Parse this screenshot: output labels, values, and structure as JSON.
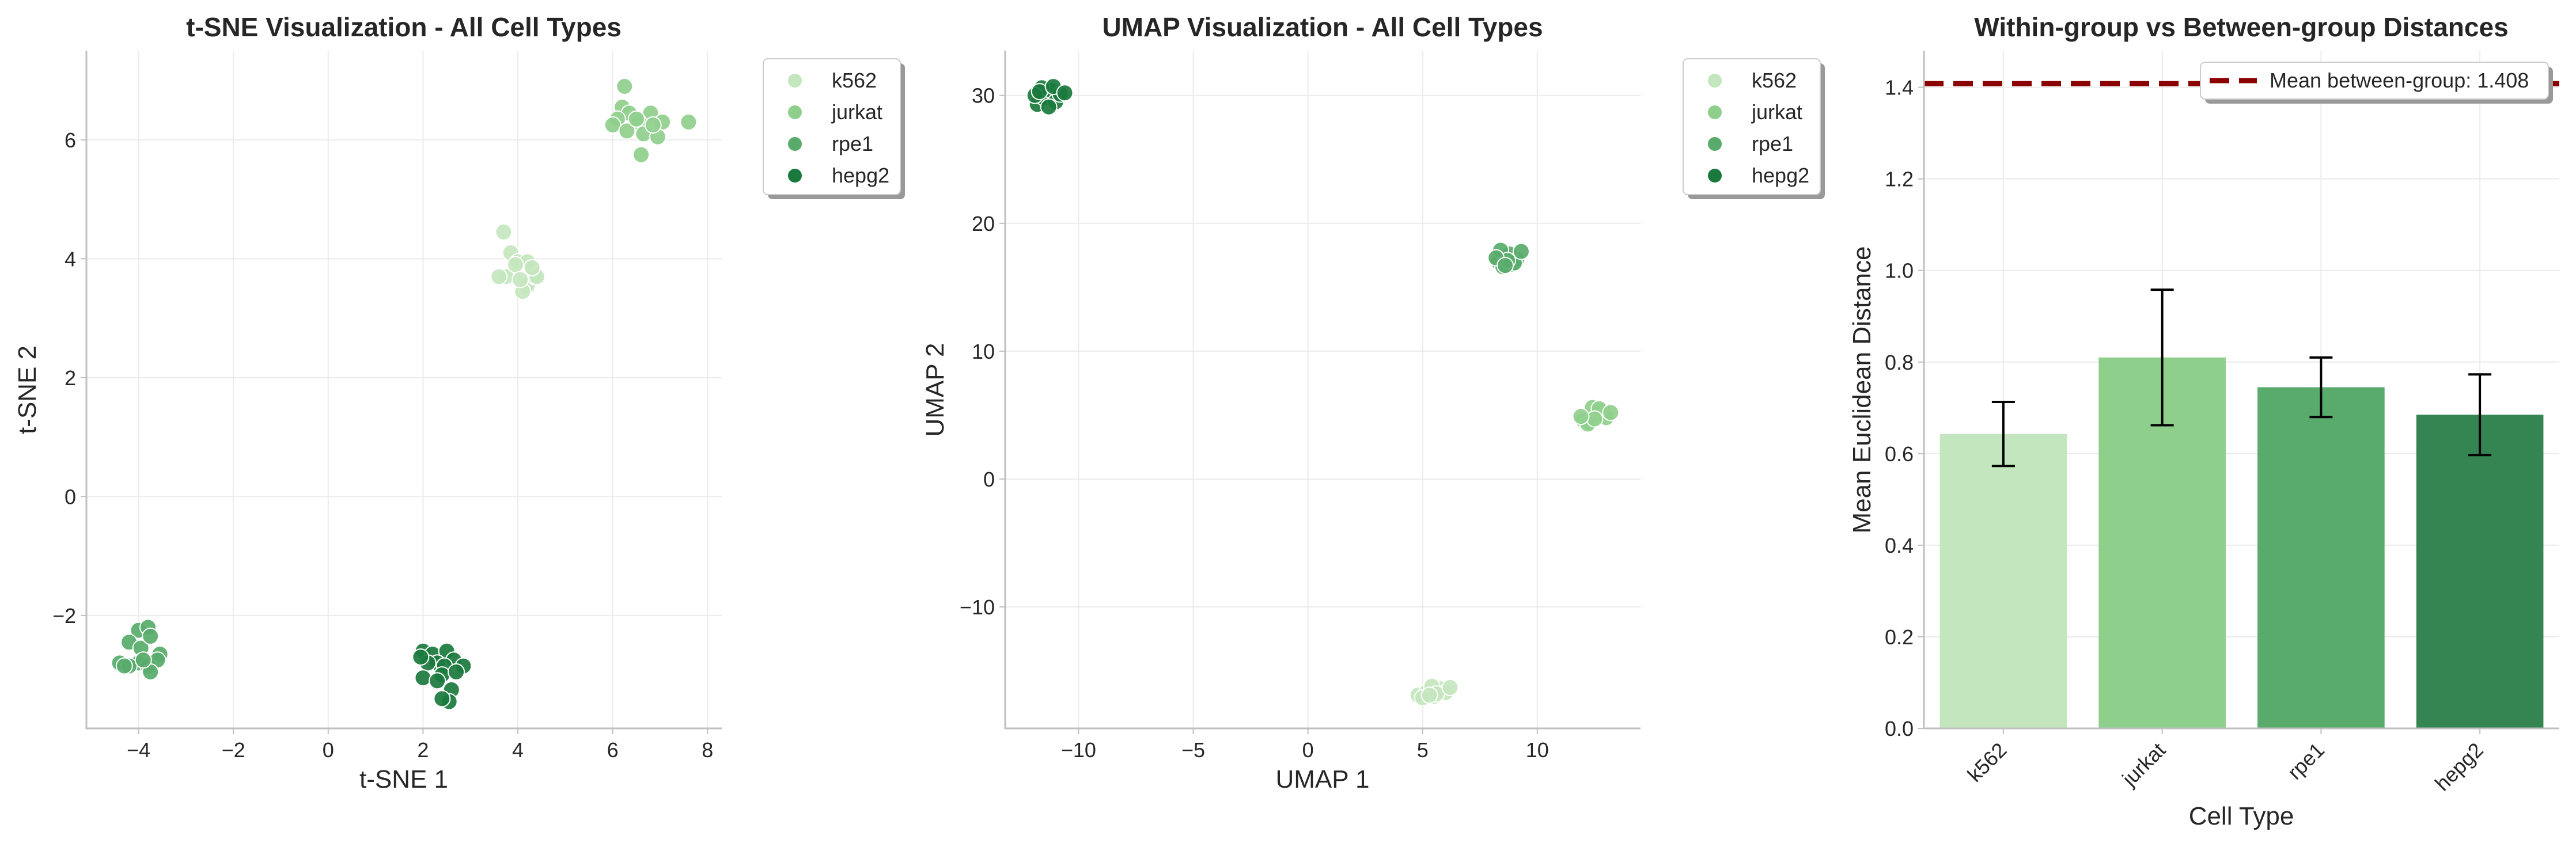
{
  "colors": {
    "k562": "#c4e6be",
    "jurkat": "#8fcf8c",
    "rpe1": "#58ab6b",
    "hepg2": "#1a7a3d",
    "bar_hepg2": "#358553",
    "mean_line": "#8b0000"
  },
  "chart_data": [
    {
      "type": "scatter",
      "title": "t-SNE Visualization - All Cell Types",
      "xlabel": "t-SNE 1",
      "ylabel": "t-SNE 2",
      "xlim": [
        -5.1,
        8.3
      ],
      "ylim": [
        -3.9,
        7.5
      ],
      "xticks": [
        -4,
        -2,
        0,
        2,
        4,
        6,
        8
      ],
      "yticks": [
        -2,
        0,
        2,
        4,
        6
      ],
      "grid": true,
      "legend": {
        "position": "outside-top-right",
        "entries": [
          "k562",
          "jurkat",
          "rpe1",
          "hepg2"
        ]
      },
      "series": [
        {
          "name": "k562",
          "points": [
            [
              3.7,
              4.45
            ],
            [
              3.85,
              4.1
            ],
            [
              4.0,
              3.95
            ],
            [
              3.75,
              3.7
            ],
            [
              4.2,
              3.55
            ],
            [
              4.1,
              3.45
            ],
            [
              4.35,
              3.7
            ],
            [
              4.2,
              3.95
            ],
            [
              3.95,
              3.9
            ],
            [
              4.4,
              3.7
            ],
            [
              3.6,
              3.7
            ],
            [
              4.3,
              3.85
            ],
            [
              4.05,
              3.65
            ]
          ]
        },
        {
          "name": "jurkat",
          "points": [
            [
              6.25,
              6.9
            ],
            [
              6.2,
              6.55
            ],
            [
              6.35,
              6.45
            ],
            [
              6.1,
              6.35
            ],
            [
              6.8,
              6.45
            ],
            [
              6.55,
              6.3
            ],
            [
              7.05,
              6.3
            ],
            [
              6.0,
              6.25
            ],
            [
              6.3,
              6.15
            ],
            [
              6.65,
              6.1
            ],
            [
              6.95,
              6.05
            ],
            [
              6.5,
              6.35
            ],
            [
              6.6,
              5.75
            ],
            [
              7.6,
              6.3
            ],
            [
              6.85,
              6.25
            ]
          ]
        },
        {
          "name": "rpe1",
          "points": [
            [
              -4.0,
              -2.25
            ],
            [
              -3.8,
              -2.2
            ],
            [
              -4.2,
              -2.45
            ],
            [
              -3.95,
              -2.55
            ],
            [
              -3.75,
              -2.35
            ],
            [
              -3.55,
              -2.65
            ],
            [
              -4.4,
              -2.8
            ],
            [
              -4.0,
              -2.8
            ],
            [
              -3.8,
              -2.85
            ],
            [
              -3.6,
              -2.75
            ],
            [
              -4.2,
              -2.85
            ],
            [
              -3.75,
              -2.95
            ],
            [
              -4.3,
              -2.85
            ],
            [
              -3.9,
              -2.75
            ]
          ]
        },
        {
          "name": "hepg2",
          "points": [
            [
              2.0,
              -2.6
            ],
            [
              2.2,
              -2.65
            ],
            [
              2.5,
              -2.6
            ],
            [
              2.3,
              -2.8
            ],
            [
              2.1,
              -2.8
            ],
            [
              2.65,
              -2.75
            ],
            [
              2.85,
              -2.85
            ],
            [
              2.45,
              -2.85
            ],
            [
              2.4,
              -3.0
            ],
            [
              2.0,
              -3.05
            ],
            [
              2.3,
              -3.1
            ],
            [
              2.6,
              -3.25
            ],
            [
              2.55,
              -3.45
            ],
            [
              2.4,
              -3.4
            ],
            [
              2.7,
              -2.95
            ],
            [
              1.95,
              -2.7
            ]
          ]
        }
      ]
    },
    {
      "type": "scatter",
      "title": "UMAP Visualization - All Cell Types",
      "xlabel": "UMAP 1",
      "ylabel": "UMAP 2",
      "xlim": [
        -13.2,
        14.5
      ],
      "ylim": [
        -19.5,
        33.5
      ],
      "xticks": [
        -10,
        -5,
        0,
        5,
        10
      ],
      "yticks": [
        -10,
        0,
        10,
        20,
        30
      ],
      "grid": true,
      "legend": {
        "position": "outside-top-right",
        "entries": [
          "k562",
          "jurkat",
          "rpe1",
          "hepg2"
        ]
      },
      "series": [
        {
          "name": "k562",
          "points": [
            [
              4.8,
              -16.9
            ],
            [
              5.2,
              -16.6
            ],
            [
              5.5,
              -17.0
            ],
            [
              5.8,
              -16.4
            ],
            [
              5.4,
              -16.2
            ],
            [
              6.0,
              -16.7
            ],
            [
              5.0,
              -17.1
            ],
            [
              5.6,
              -16.8
            ],
            [
              6.2,
              -16.3
            ],
            [
              5.3,
              -16.9
            ]
          ]
        },
        {
          "name": "jurkat",
          "points": [
            [
              12.0,
              4.6
            ],
            [
              12.3,
              4.4
            ],
            [
              12.6,
              5.0
            ],
            [
              12.9,
              5.3
            ],
            [
              12.4,
              5.6
            ],
            [
              12.2,
              4.3
            ],
            [
              13.0,
              4.8
            ],
            [
              12.7,
              5.5
            ],
            [
              13.2,
              5.2
            ],
            [
              12.5,
              4.7
            ],
            [
              11.9,
              4.9
            ]
          ]
        },
        {
          "name": "rpe1",
          "points": [
            [
              8.3,
              17.0
            ],
            [
              8.6,
              17.4
            ],
            [
              8.9,
              16.8
            ],
            [
              9.1,
              17.2
            ],
            [
              8.5,
              16.6
            ],
            [
              8.8,
              17.6
            ],
            [
              8.4,
              17.9
            ],
            [
              9.0,
              16.9
            ],
            [
              8.7,
              17.1
            ],
            [
              8.2,
              17.3
            ],
            [
              9.3,
              17.8
            ],
            [
              8.6,
              16.7
            ]
          ]
        },
        {
          "name": "hepg2",
          "points": [
            [
              -11.8,
              29.3
            ],
            [
              -11.5,
              29.8
            ],
            [
              -11.2,
              30.4
            ],
            [
              -11.0,
              29.5
            ],
            [
              -11.6,
              30.6
            ],
            [
              -11.9,
              30.0
            ],
            [
              -10.8,
              30.1
            ],
            [
              -11.3,
              29.1
            ],
            [
              -11.7,
              30.3
            ],
            [
              -11.1,
              30.7
            ],
            [
              -10.6,
              30.2
            ]
          ]
        }
      ]
    },
    {
      "type": "bar",
      "title": "Within-group vs Between-group Distances",
      "xlabel": "Cell Type",
      "ylabel": "Mean Euclidean Distance",
      "ylim": [
        0,
        1.48
      ],
      "yticks": [
        "0.0",
        "0.2",
        "0.4",
        "0.6",
        "0.8",
        "1.0",
        "1.2",
        "1.4"
      ],
      "categories": [
        "k562",
        "jurkat",
        "rpe1",
        "hepg2"
      ],
      "values": [
        0.643,
        0.81,
        0.745,
        0.685
      ],
      "errors": [
        0.07,
        0.148,
        0.065,
        0.088
      ],
      "reference_line": {
        "value": 1.408,
        "label": "Mean between-group: 1.408"
      },
      "grid": true,
      "legend": {
        "position": "top-right"
      }
    }
  ]
}
